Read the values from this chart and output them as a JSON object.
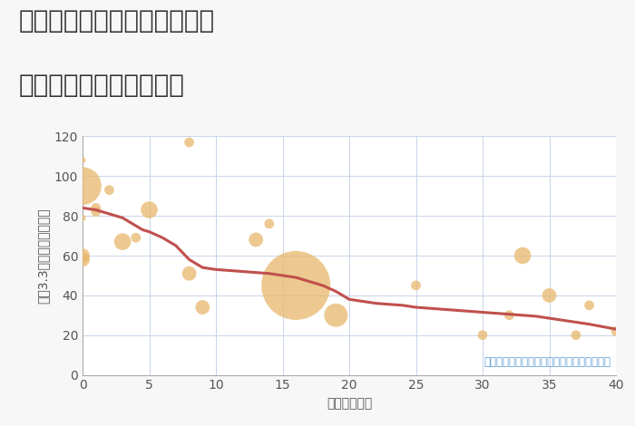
{
  "title_line1": "兵庫県姫路市八代緑ヶ丘町の",
  "title_line2": "築年数別中古戸建て価格",
  "xlabel": "築年数（年）",
  "ylabel": "坪（3.3㎡）単価（万円）",
  "background_color": "#f7f7f7",
  "plot_bg_color": "#ffffff",
  "xlim": [
    0,
    40
  ],
  "ylim": [
    0,
    120
  ],
  "xticks": [
    0,
    5,
    10,
    15,
    20,
    25,
    30,
    35,
    40
  ],
  "yticks": [
    0,
    20,
    40,
    60,
    80,
    100,
    120
  ],
  "scatter_x": [
    0,
    0,
    0,
    0,
    0,
    1,
    1,
    2,
    3,
    4,
    5,
    8,
    8,
    9,
    13,
    14,
    16,
    19,
    25,
    30,
    32,
    33,
    35,
    37,
    38,
    40
  ],
  "scatter_y": [
    108,
    95,
    79,
    60,
    58,
    84,
    82,
    93,
    67,
    69,
    83,
    117,
    51,
    34,
    68,
    76,
    45,
    30,
    45,
    20,
    30,
    60,
    40,
    20,
    35,
    22
  ],
  "scatter_size": [
    25,
    900,
    25,
    130,
    130,
    60,
    60,
    60,
    180,
    60,
    180,
    60,
    130,
    130,
    130,
    60,
    3000,
    350,
    60,
    60,
    60,
    180,
    130,
    60,
    60,
    60
  ],
  "scatter_color": "#e8b86d",
  "scatter_alpha": 0.75,
  "line_x": [
    0,
    0.5,
    1,
    1.5,
    2,
    2.5,
    3,
    3.5,
    4,
    4.5,
    5,
    6,
    7,
    8,
    9,
    10,
    11,
    12,
    13,
    14,
    15,
    16,
    17,
    18,
    19,
    20,
    22,
    24,
    25,
    27,
    28,
    30,
    32,
    34,
    35,
    37,
    38,
    40
  ],
  "line_y": [
    84,
    83.5,
    83,
    82,
    81,
    80,
    79,
    77,
    75,
    73,
    72,
    69,
    65,
    58,
    54,
    53,
    52.5,
    52,
    51.5,
    51,
    50,
    49,
    47,
    45,
    42,
    38,
    36,
    35,
    34,
    33,
    32.5,
    31.5,
    30.5,
    29.5,
    28.5,
    26.5,
    25.5,
    23
  ],
  "line_color": "#c0504d",
  "line_width": 2.2,
  "note_text": "円の大きさは、取引のあった物件面積を示す",
  "note_color": "#5b9bd5",
  "note_fontsize": 8.5,
  "title_fontsize": 20,
  "axis_fontsize": 10,
  "tick_fontsize": 10,
  "title_color": "#333333",
  "tick_color": "#555555"
}
